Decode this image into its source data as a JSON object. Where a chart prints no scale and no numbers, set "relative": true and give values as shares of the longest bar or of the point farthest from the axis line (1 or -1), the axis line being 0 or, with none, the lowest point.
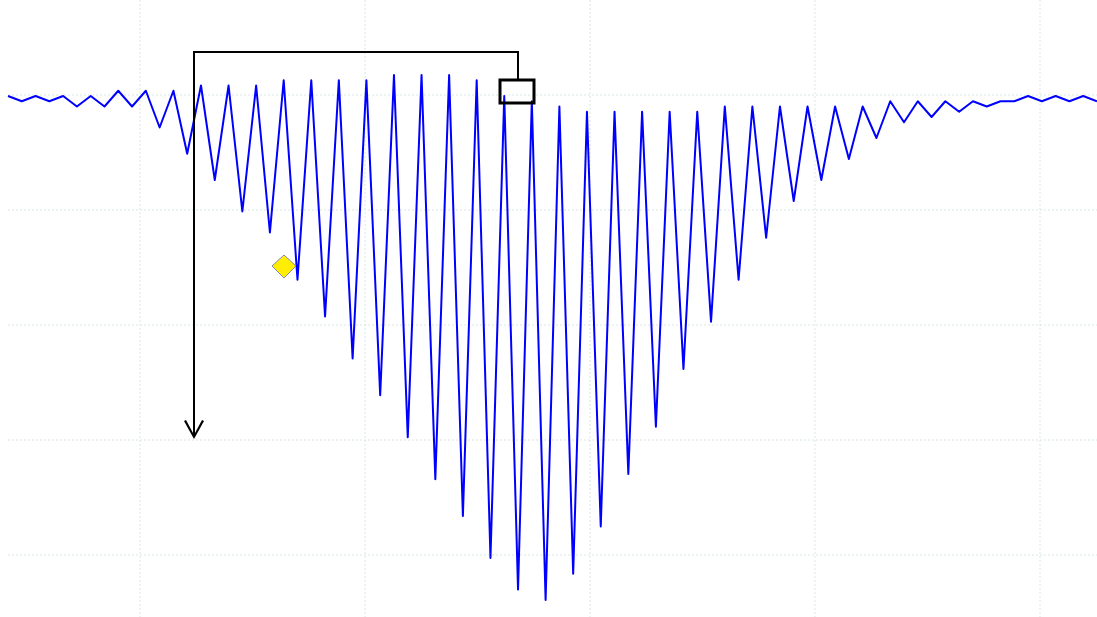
{
  "chart_data": {
    "type": "line",
    "relative": true,
    "grid": true,
    "marker": "none",
    "line_style": "solid",
    "categories": [
      null,
      null,
      null,
      null,
      null,
      null,
      null,
      null,
      null,
      null,
      null,
      null,
      null,
      null,
      null,
      null,
      null,
      null,
      null,
      null,
      null,
      null,
      null,
      null,
      null,
      null,
      null,
      null,
      null,
      null,
      null,
      null,
      null,
      null,
      null,
      null,
      null,
      null,
      null,
      null,
      null,
      null,
      null,
      null,
      null,
      null,
      null,
      null,
      null,
      null,
      null,
      null,
      null,
      null,
      null,
      null,
      null,
      null,
      null,
      null,
      null,
      null,
      null,
      null,
      null,
      null,
      null,
      null,
      null,
      null,
      null,
      null,
      null,
      null,
      null,
      null,
      null,
      null,
      null,
      null
    ],
    "series": [
      {
        "color": "#0000ff",
        "values": [
          0.96,
          0.95,
          0.96,
          0.95,
          0.96,
          0.94,
          0.96,
          0.94,
          0.97,
          0.94,
          0.97,
          0.9,
          0.97,
          0.85,
          0.98,
          0.8,
          0.98,
          0.74,
          0.98,
          0.7,
          0.99,
          0.61,
          0.99,
          0.54,
          0.99,
          0.46,
          0.99,
          0.39,
          1.0,
          0.31,
          1.0,
          0.23,
          1.0,
          0.16,
          0.99,
          0.08,
          0.96,
          0.02,
          0.95,
          0,
          0.94,
          0.05,
          0.93,
          0.14,
          0.93,
          0.24,
          0.93,
          0.33,
          0.93,
          0.44,
          0.93,
          0.53,
          0.94,
          0.61,
          0.94,
          0.69,
          0.94,
          0.76,
          0.94,
          0.8,
          0.94,
          0.84,
          0.94,
          0.88,
          0.95,
          0.91,
          0.95,
          0.92,
          0.95,
          0.93,
          0.95,
          0.94,
          0.95,
          0.95,
          0.96,
          0.95,
          0.96,
          0.95,
          0.96,
          0.95
        ]
      }
    ]
  }
}
